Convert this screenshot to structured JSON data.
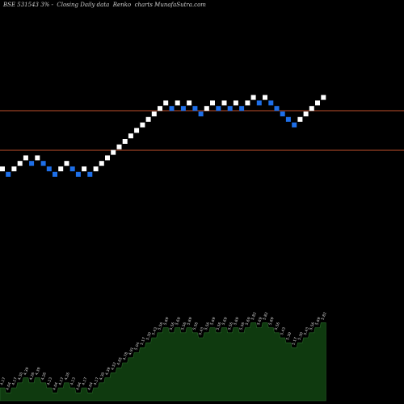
{
  "chart_data": {
    "type": "renko",
    "title": "BSE 531543 3% -  Closing Daily data  Renko  charts MunafaSutra.com",
    "colors": {
      "background": "#000000",
      "up_brick": "#ffffff",
      "down_brick": "#1e6fe8",
      "reference_line": "#c0502c",
      "volume_fill": "#0f3a0f",
      "volume_stroke": "#2a6a2a",
      "label_text": "#d8d8d8"
    },
    "reference_lines": [
      {
        "name": "upper-line"
      },
      {
        "name": "lower-line"
      }
    ],
    "bricks": [
      {
        "dir": "up",
        "level": 0
      },
      {
        "dir": "down",
        "level": -1
      },
      {
        "dir": "up",
        "level": 0
      },
      {
        "dir": "up",
        "level": 1
      },
      {
        "dir": "up",
        "level": 2
      },
      {
        "dir": "down",
        "level": 1
      },
      {
        "dir": "up",
        "level": 2
      },
      {
        "dir": "down",
        "level": 1
      },
      {
        "dir": "down",
        "level": 0
      },
      {
        "dir": "down",
        "level": -1
      },
      {
        "dir": "up",
        "level": 0
      },
      {
        "dir": "up",
        "level": 1
      },
      {
        "dir": "down",
        "level": 0
      },
      {
        "dir": "down",
        "level": -1
      },
      {
        "dir": "up",
        "level": 0
      },
      {
        "dir": "down",
        "level": -1
      },
      {
        "dir": "up",
        "level": 0
      },
      {
        "dir": "up",
        "level": 1
      },
      {
        "dir": "up",
        "level": 2
      },
      {
        "dir": "up",
        "level": 3
      },
      {
        "dir": "up",
        "level": 4
      },
      {
        "dir": "up",
        "level": 5
      },
      {
        "dir": "up",
        "level": 6
      },
      {
        "dir": "up",
        "level": 7
      },
      {
        "dir": "up",
        "level": 8
      },
      {
        "dir": "up",
        "level": 9
      },
      {
        "dir": "up",
        "level": 10
      },
      {
        "dir": "up",
        "level": 11
      },
      {
        "dir": "up",
        "level": 12
      },
      {
        "dir": "down",
        "level": 11
      },
      {
        "dir": "up",
        "level": 12
      },
      {
        "dir": "down",
        "level": 11
      },
      {
        "dir": "up",
        "level": 12
      },
      {
        "dir": "down",
        "level": 11
      },
      {
        "dir": "down",
        "level": 10
      },
      {
        "dir": "up",
        "level": 11
      },
      {
        "dir": "up",
        "level": 12
      },
      {
        "dir": "down",
        "level": 11
      },
      {
        "dir": "up",
        "level": 12
      },
      {
        "dir": "down",
        "level": 11
      },
      {
        "dir": "up",
        "level": 12
      },
      {
        "dir": "down",
        "level": 11
      },
      {
        "dir": "up",
        "level": 12
      },
      {
        "dir": "up",
        "level": 13
      },
      {
        "dir": "down",
        "level": 12
      },
      {
        "dir": "up",
        "level": 13
      },
      {
        "dir": "down",
        "level": 12
      },
      {
        "dir": "down",
        "level": 11
      },
      {
        "dir": "down",
        "level": 10
      },
      {
        "dir": "down",
        "level": 9
      },
      {
        "dir": "down",
        "level": 8
      },
      {
        "dir": "up",
        "level": 9
      },
      {
        "dir": "up",
        "level": 10
      },
      {
        "dir": "up",
        "level": 11
      },
      {
        "dir": "up",
        "level": 12
      },
      {
        "dir": "up",
        "level": 13
      }
    ],
    "brick_labels": [
      "4.17",
      "4.04",
      "4.17",
      "4.30",
      "4.39",
      "4.26",
      "4.39",
      "4.26",
      "4.13",
      "4.04",
      "4.17",
      "4.26",
      "4.13",
      "4.04",
      "4.17",
      "4.04",
      "4.17",
      "4.30",
      "4.39",
      "4.52",
      "4.65",
      "4.78",
      "4.91",
      "5.04",
      "5.17",
      "5.30",
      "5.43",
      "5.56",
      "5.69",
      "5.56",
      "5.69",
      "5.56",
      "5.69",
      "5.56",
      "5.43",
      "5.56",
      "5.69",
      "5.56",
      "5.69",
      "5.56",
      "5.69",
      "5.56",
      "5.69",
      "5.82",
      "5.69",
      "5.82",
      "5.69",
      "5.56",
      "5.43",
      "5.30",
      "5.17",
      "5.30",
      "5.43",
      "5.56",
      "5.69",
      "5.82"
    ]
  }
}
